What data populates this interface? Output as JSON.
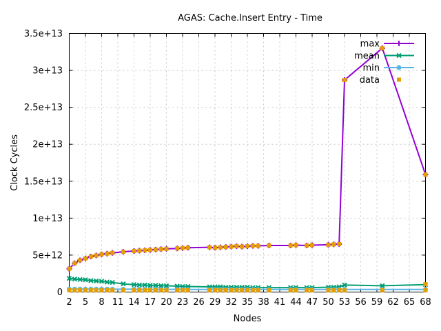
{
  "chart_data": {
    "type": "line",
    "title": "AGAS: Cache.Insert Entry - Time",
    "xlabel": "Nodes",
    "ylabel": "Clock Cycles",
    "xlim": [
      2,
      68
    ],
    "ylim": [
      0,
      35000000000000.0
    ],
    "grid": true,
    "legend_position": "top-right-inside",
    "x_ticks": [
      2,
      5,
      8,
      11,
      14,
      17,
      20,
      23,
      26,
      29,
      32,
      35,
      38,
      41,
      44,
      47,
      50,
      53,
      56,
      59,
      62,
      65,
      68
    ],
    "y_ticks": [
      {
        "v": 0,
        "label": "0"
      },
      {
        "v": 5000000000000.0,
        "label": "5e+12"
      },
      {
        "v": 10000000000000.0,
        "label": "1e+13"
      },
      {
        "v": 15000000000000.0,
        "label": "1.5e+13"
      },
      {
        "v": 20000000000000.0,
        "label": "2e+13"
      },
      {
        "v": 25000000000000.0,
        "label": "2.5e+13"
      },
      {
        "v": 30000000000000.0,
        "label": "3e+13"
      },
      {
        "v": 35000000000000.0,
        "label": "3.5e+13"
      }
    ],
    "colors": {
      "axis": "#000000",
      "grid": "#c8c8c8",
      "background": "#ffffff"
    },
    "series": [
      {
        "name": "max",
        "color": "#9400d3",
        "marker": "plus",
        "style": "line+markers",
        "points": [
          [
            2,
            3150000000000.0
          ],
          [
            3,
            3900000000000.0
          ],
          [
            4,
            4300000000000.0
          ],
          [
            5,
            4550000000000.0
          ],
          [
            6,
            4800000000000.0
          ],
          [
            7,
            4950000000000.0
          ],
          [
            8,
            5100000000000.0
          ],
          [
            9,
            5200000000000.0
          ],
          [
            10,
            5300000000000.0
          ],
          [
            12,
            5450000000000.0
          ],
          [
            14,
            5550000000000.0
          ],
          [
            15,
            5600000000000.0
          ],
          [
            16,
            5650000000000.0
          ],
          [
            17,
            5700000000000.0
          ],
          [
            18,
            5750000000000.0
          ],
          [
            19,
            5800000000000.0
          ],
          [
            20,
            5850000000000.0
          ],
          [
            22,
            5900000000000.0
          ],
          [
            23,
            5950000000000.0
          ],
          [
            24,
            6000000000000.0
          ],
          [
            28,
            6050000000000.0
          ],
          [
            29,
            6000000000000.0
          ],
          [
            30,
            6050000000000.0
          ],
          [
            31,
            6100000000000.0
          ],
          [
            32,
            6150000000000.0
          ],
          [
            33,
            6200000000000.0
          ],
          [
            34,
            6150000000000.0
          ],
          [
            35,
            6200000000000.0
          ],
          [
            36,
            6250000000000.0
          ],
          [
            37,
            6250000000000.0
          ],
          [
            39,
            6300000000000.0
          ],
          [
            43,
            6300000000000.0
          ],
          [
            44,
            6350000000000.0
          ],
          [
            46,
            6300000000000.0
          ],
          [
            47,
            6350000000000.0
          ],
          [
            50,
            6400000000000.0
          ],
          [
            51,
            6450000000000.0
          ],
          [
            52,
            6500000000000.0
          ],
          [
            53,
            28700000000000.0
          ],
          [
            60,
            33000000000000.0
          ],
          [
            68,
            15900000000000.0
          ]
        ]
      },
      {
        "name": "mean",
        "color": "#009e73",
        "marker": "x",
        "style": "line+markers",
        "points": [
          [
            2,
            1850000000000.0
          ],
          [
            3,
            1750000000000.0
          ],
          [
            4,
            1700000000000.0
          ],
          [
            5,
            1650000000000.0
          ],
          [
            6,
            1550000000000.0
          ],
          [
            7,
            1500000000000.0
          ],
          [
            8,
            1450000000000.0
          ],
          [
            9,
            1350000000000.0
          ],
          [
            10,
            1300000000000.0
          ],
          [
            12,
            1100000000000.0
          ],
          [
            14,
            1000000000000.0
          ],
          [
            15,
            950000000000.0
          ],
          [
            16,
            950000000000.0
          ],
          [
            17,
            900000000000.0
          ],
          [
            18,
            900000000000.0
          ],
          [
            19,
            850000000000.0
          ],
          [
            20,
            850000000000.0
          ],
          [
            22,
            800000000000.0
          ],
          [
            23,
            750000000000.0
          ],
          [
            24,
            750000000000.0
          ],
          [
            28,
            700000000000.0
          ],
          [
            29,
            700000000000.0
          ],
          [
            30,
            700000000000.0
          ],
          [
            31,
            650000000000.0
          ],
          [
            32,
            650000000000.0
          ],
          [
            33,
            650000000000.0
          ],
          [
            34,
            650000000000.0
          ],
          [
            35,
            650000000000.0
          ],
          [
            36,
            600000000000.0
          ],
          [
            37,
            600000000000.0
          ],
          [
            39,
            600000000000.0
          ],
          [
            43,
            600000000000.0
          ],
          [
            44,
            600000000000.0
          ],
          [
            46,
            600000000000.0
          ],
          [
            47,
            600000000000.0
          ],
          [
            50,
            650000000000.0
          ],
          [
            51,
            650000000000.0
          ],
          [
            52,
            700000000000.0
          ],
          [
            53,
            950000000000.0
          ],
          [
            60,
            850000000000.0
          ],
          [
            68,
            1000000000000.0
          ]
        ]
      },
      {
        "name": "min",
        "color": "#56b4e9",
        "marker": "asterisk",
        "style": "line+markers",
        "points": [
          [
            2,
            400000000000.0
          ],
          [
            3,
            400000000000.0
          ],
          [
            4,
            400000000000.0
          ],
          [
            5,
            400000000000.0
          ],
          [
            6,
            400000000000.0
          ],
          [
            7,
            400000000000.0
          ],
          [
            8,
            400000000000.0
          ],
          [
            9,
            400000000000.0
          ],
          [
            10,
            380000000000.0
          ],
          [
            12,
            380000000000.0
          ],
          [
            14,
            380000000000.0
          ],
          [
            15,
            360000000000.0
          ],
          [
            16,
            360000000000.0
          ],
          [
            17,
            360000000000.0
          ],
          [
            18,
            360000000000.0
          ],
          [
            19,
            360000000000.0
          ],
          [
            20,
            360000000000.0
          ],
          [
            22,
            360000000000.0
          ],
          [
            23,
            360000000000.0
          ],
          [
            24,
            350000000000.0
          ],
          [
            28,
            350000000000.0
          ],
          [
            29,
            350000000000.0
          ],
          [
            30,
            350000000000.0
          ],
          [
            31,
            350000000000.0
          ],
          [
            32,
            350000000000.0
          ],
          [
            33,
            350000000000.0
          ],
          [
            34,
            350000000000.0
          ],
          [
            35,
            350000000000.0
          ],
          [
            36,
            350000000000.0
          ],
          [
            37,
            350000000000.0
          ],
          [
            39,
            350000000000.0
          ],
          [
            43,
            350000000000.0
          ],
          [
            44,
            350000000000.0
          ],
          [
            46,
            350000000000.0
          ],
          [
            47,
            350000000000.0
          ],
          [
            50,
            350000000000.0
          ],
          [
            51,
            350000000000.0
          ],
          [
            52,
            350000000000.0
          ],
          [
            53,
            350000000000.0
          ],
          [
            60,
            350000000000.0
          ],
          [
            68,
            350000000000.0
          ]
        ]
      },
      {
        "name": "data",
        "color": "#e69f00",
        "marker": "square",
        "style": "markers",
        "points": [
          [
            2,
            3150000000000.0
          ],
          [
            3,
            3900000000000.0
          ],
          [
            4,
            4300000000000.0
          ],
          [
            5,
            4550000000000.0
          ],
          [
            6,
            4800000000000.0
          ],
          [
            7,
            4950000000000.0
          ],
          [
            8,
            5100000000000.0
          ],
          [
            9,
            5200000000000.0
          ],
          [
            10,
            5300000000000.0
          ],
          [
            12,
            5450000000000.0
          ],
          [
            14,
            5550000000000.0
          ],
          [
            15,
            5600000000000.0
          ],
          [
            16,
            5650000000000.0
          ],
          [
            17,
            5700000000000.0
          ],
          [
            18,
            5750000000000.0
          ],
          [
            19,
            5800000000000.0
          ],
          [
            20,
            5850000000000.0
          ],
          [
            22,
            5900000000000.0
          ],
          [
            23,
            5950000000000.0
          ],
          [
            24,
            6000000000000.0
          ],
          [
            28,
            6050000000000.0
          ],
          [
            29,
            6000000000000.0
          ],
          [
            30,
            6050000000000.0
          ],
          [
            31,
            6100000000000.0
          ],
          [
            32,
            6150000000000.0
          ],
          [
            33,
            6200000000000.0
          ],
          [
            34,
            6150000000000.0
          ],
          [
            35,
            6200000000000.0
          ],
          [
            36,
            6250000000000.0
          ],
          [
            37,
            6250000000000.0
          ],
          [
            39,
            6300000000000.0
          ],
          [
            43,
            6300000000000.0
          ],
          [
            44,
            6350000000000.0
          ],
          [
            46,
            6300000000000.0
          ],
          [
            47,
            6350000000000.0
          ],
          [
            50,
            6400000000000.0
          ],
          [
            51,
            6450000000000.0
          ],
          [
            52,
            6500000000000.0
          ],
          [
            53,
            28700000000000.0
          ],
          [
            60,
            33000000000000.0
          ],
          [
            68,
            15900000000000.0
          ],
          [
            2,
            250000000000.0
          ],
          [
            3,
            250000000000.0
          ],
          [
            4,
            250000000000.0
          ],
          [
            5,
            250000000000.0
          ],
          [
            6,
            250000000000.0
          ],
          [
            7,
            250000000000.0
          ],
          [
            8,
            250000000000.0
          ],
          [
            9,
            250000000000.0
          ],
          [
            10,
            250000000000.0
          ],
          [
            12,
            250000000000.0
          ],
          [
            14,
            250000000000.0
          ],
          [
            15,
            250000000000.0
          ],
          [
            16,
            250000000000.0
          ],
          [
            17,
            250000000000.0
          ],
          [
            18,
            250000000000.0
          ],
          [
            19,
            250000000000.0
          ],
          [
            20,
            250000000000.0
          ],
          [
            22,
            250000000000.0
          ],
          [
            23,
            250000000000.0
          ],
          [
            24,
            250000000000.0
          ],
          [
            28,
            250000000000.0
          ],
          [
            29,
            250000000000.0
          ],
          [
            30,
            250000000000.0
          ],
          [
            31,
            250000000000.0
          ],
          [
            32,
            250000000000.0
          ],
          [
            33,
            250000000000.0
          ],
          [
            34,
            250000000000.0
          ],
          [
            35,
            250000000000.0
          ],
          [
            36,
            250000000000.0
          ],
          [
            37,
            250000000000.0
          ],
          [
            39,
            250000000000.0
          ],
          [
            43,
            250000000000.0
          ],
          [
            44,
            250000000000.0
          ],
          [
            46,
            250000000000.0
          ],
          [
            47,
            250000000000.0
          ],
          [
            50,
            250000000000.0
          ],
          [
            51,
            250000000000.0
          ],
          [
            52,
            250000000000.0
          ],
          [
            53,
            250000000000.0
          ],
          [
            60,
            250000000000.0
          ],
          [
            68,
            250000000000.0
          ],
          [
            68,
            1050000000000.0
          ]
        ]
      }
    ]
  }
}
